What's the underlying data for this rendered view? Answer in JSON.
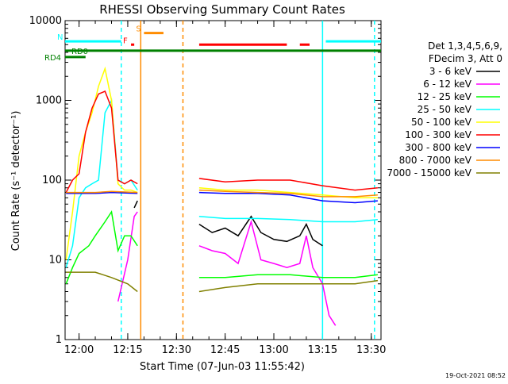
{
  "chart_data": {
    "type": "line",
    "title": "RHESSI Observing Summary Count Rates",
    "xlabel": "Start Time (07-Jun-03 11:55:42)",
    "ylabel": "Count Rate (s⁻¹ detector⁻¹)",
    "y_scale": "log",
    "ylim": [
      1,
      10000
    ],
    "xlim": [
      "11:55:42",
      "13:33:00"
    ],
    "x_ticks": [
      "12:00",
      "12:15",
      "12:30",
      "12:45",
      "13:00",
      "13:15",
      "13:30"
    ],
    "y_ticks": [
      "1",
      "10",
      "100",
      "1000",
      "10000"
    ],
    "legend_title": [
      "Det 1,3,4,5,6,9,",
      "FDecim 3, Att 0"
    ],
    "legend_position": "right",
    "series": [
      {
        "name": "3 - 6 keV",
        "color": "#000000",
        "x": [
          "11:59",
          "12:03",
          "12:07",
          "12:11",
          "12:15",
          "12:17",
          "12:18",
          "12:37",
          "12:41",
          "12:45",
          "12:49",
          "12:53",
          "12:56",
          "13:00",
          "13:04",
          "13:08",
          "13:10",
          "13:12",
          "13:15"
        ],
        "y": [
          null,
          null,
          null,
          null,
          null,
          45,
          55,
          28,
          22,
          25,
          20,
          35,
          22,
          18,
          17,
          20,
          28,
          18,
          15
        ]
      },
      {
        "name": "6 - 12 keV",
        "color": "#ff00ff",
        "x": [
          "12:12",
          "12:15",
          "12:17",
          "12:18",
          "12:37",
          "12:41",
          "12:45",
          "12:49",
          "12:53",
          "12:56",
          "13:00",
          "13:04",
          "13:08",
          "13:10",
          "13:12",
          "13:15",
          "13:17",
          "13:19"
        ],
        "y": [
          3,
          10,
          35,
          40,
          15,
          13,
          12,
          9,
          30,
          10,
          9,
          8,
          9,
          20,
          8,
          5,
          2,
          1.5
        ]
      },
      {
        "name": "12 - 25 keV",
        "color": "#00ff00",
        "x": [
          "11:56",
          "11:58",
          "12:00",
          "12:03",
          "12:05",
          "12:08",
          "12:10",
          "12:12",
          "12:14",
          "12:16",
          "12:18",
          "12:37",
          "12:45",
          "12:55",
          "13:05",
          "13:15",
          "13:25",
          "13:32"
        ],
        "y": [
          5,
          8,
          12,
          15,
          20,
          30,
          40,
          13,
          20,
          20,
          15,
          6,
          6,
          6.5,
          6.5,
          6,
          6,
          6.5
        ]
      },
      {
        "name": "25 - 50 keV",
        "color": "#00ffff",
        "x": [
          "11:56",
          "11:58",
          "12:00",
          "12:02",
          "12:04",
          "12:06",
          "12:08",
          "12:10",
          "12:12",
          "12:14",
          "12:16",
          "12:18",
          "12:37",
          "12:45",
          "12:55",
          "13:05",
          "13:15",
          "13:25",
          "13:32"
        ],
        "y": [
          8,
          15,
          60,
          80,
          90,
          100,
          700,
          1000,
          100,
          90,
          100,
          75,
          35,
          33,
          33,
          32,
          30,
          30,
          32
        ]
      },
      {
        "name": "50 - 100 keV",
        "color": "#ffff00",
        "x": [
          "11:56",
          "11:58",
          "12:00",
          "12:02",
          "12:04",
          "12:06",
          "12:08",
          "12:10",
          "12:12",
          "12:14",
          "12:16",
          "12:18",
          "12:37",
          "12:45",
          "12:55",
          "13:05",
          "13:15",
          "13:25",
          "13:32"
        ],
        "y": [
          10,
          40,
          200,
          400,
          700,
          1500,
          2500,
          1000,
          90,
          75,
          75,
          70,
          80,
          75,
          75,
          70,
          65,
          60,
          60
        ]
      },
      {
        "name": "100 - 300 keV",
        "color": "#ff0000",
        "x": [
          "11:56",
          "11:58",
          "12:00",
          "12:02",
          "12:04",
          "12:06",
          "12:08",
          "12:10",
          "12:12",
          "12:14",
          "12:16",
          "12:18",
          "12:37",
          "12:45",
          "12:55",
          "13:05",
          "13:15",
          "13:25",
          "13:32"
        ],
        "y": [
          70,
          100,
          120,
          400,
          800,
          1200,
          1300,
          800,
          100,
          90,
          100,
          90,
          105,
          95,
          100,
          100,
          85,
          75,
          80
        ]
      },
      {
        "name": "300 - 800 keV",
        "color": "#0000ff",
        "x": [
          "11:56",
          "12:05",
          "12:10",
          "12:18",
          "12:37",
          "12:45",
          "12:55",
          "13:05",
          "13:15",
          "13:25",
          "13:32"
        ],
        "y": [
          68,
          68,
          70,
          68,
          70,
          68,
          68,
          65,
          55,
          52,
          55
        ]
      },
      {
        "name": "800 - 7000 keV",
        "color": "#ff8c00",
        "x": [
          "11:56",
          "12:05",
          "12:10",
          "12:18",
          "12:37",
          "12:45",
          "12:55",
          "13:05",
          "13:15",
          "13:25",
          "13:32"
        ],
        "y": [
          70,
          70,
          72,
          70,
          75,
          72,
          70,
          68,
          62,
          62,
          65
        ]
      },
      {
        "name": "7000 - 15000 keV",
        "color": "#808000",
        "x": [
          "11:56",
          "12:00",
          "12:05",
          "12:10",
          "12:15",
          "12:18",
          "12:37",
          "12:45",
          "12:55",
          "13:05",
          "13:15",
          "13:25",
          "13:32"
        ],
        "y": [
          7,
          7,
          7,
          6,
          5,
          4,
          4,
          4.5,
          5,
          5,
          5,
          5,
          5.5
        ]
      }
    ],
    "flag_bars": [
      {
        "label": "RD4",
        "color": "#008000",
        "y": 3500,
        "spans": [
          [
            "11:55:42",
            "12:02"
          ]
        ]
      },
      {
        "label": "RD0",
        "color": "#008000",
        "y": 4200,
        "spans": [
          [
            "11:55:42",
            "13:33:00"
          ]
        ]
      },
      {
        "label": "S",
        "color": "#ff8c00",
        "y": 7000,
        "spans": [
          [
            "12:20",
            "12:26"
          ]
        ]
      },
      {
        "label": "N",
        "color": "#00ffff",
        "y": 5500,
        "spans": [
          [
            "11:55:42",
            "12:13"
          ],
          [
            "13:16",
            "13:33:00"
          ]
        ]
      },
      {
        "label": "F",
        "color": "#ff0000",
        "y": 5000,
        "spans": [
          [
            "12:16",
            "12:17"
          ],
          [
            "12:37",
            "13:04"
          ],
          [
            "13:08",
            "13:11"
          ]
        ]
      }
    ],
    "vertical_lines": [
      {
        "x": "12:13",
        "color": "#00ffff",
        "style": "dashed"
      },
      {
        "x": "12:19",
        "color": "#ff8c00",
        "style": "solid"
      },
      {
        "x": "12:32",
        "color": "#ff8c00",
        "style": "dashed"
      },
      {
        "x": "13:15",
        "color": "#00ffff",
        "style": "solid"
      },
      {
        "x": "13:31",
        "color": "#00ffff",
        "style": "dashed"
      }
    ],
    "gaps": [
      [
        "12:19",
        "12:36"
      ]
    ],
    "footer_date": "19-Oct-2021 08:52"
  }
}
